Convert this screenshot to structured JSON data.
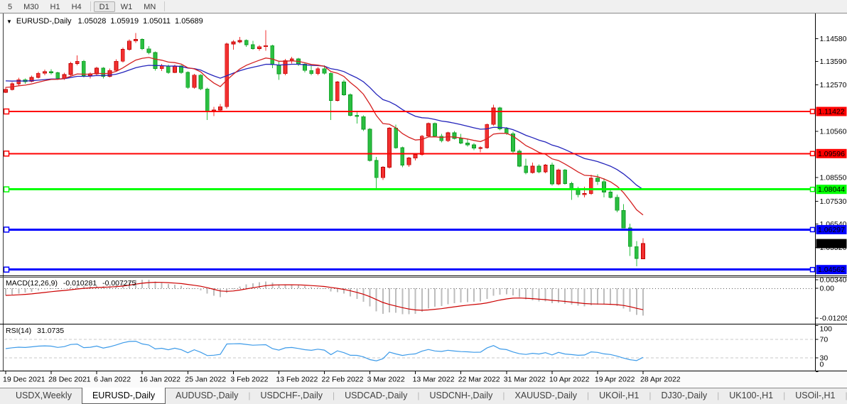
{
  "toolbar": {
    "timeframes": [
      "5",
      "M30",
      "H1",
      "H4",
      "D1",
      "W1",
      "MN"
    ],
    "active": "D1",
    "separators_after": [
      3,
      6
    ]
  },
  "chart_header": {
    "collapse_icon": "▼",
    "symbol_title": "EURUSD-,Daily",
    "open": "1.05028",
    "high": "1.05919",
    "low": "1.05011",
    "close": "1.05689"
  },
  "price_axis": {
    "ticks": [
      {
        "label": "1.14580",
        "price": 1.1458
      },
      {
        "label": "1.13590",
        "price": 1.1359
      },
      {
        "label": "1.12570",
        "price": 1.1257
      },
      {
        "label": "1.10560",
        "price": 1.1056
      },
      {
        "label": "1.08550",
        "price": 1.0855
      },
      {
        "label": "1.07530",
        "price": 1.0753
      },
      {
        "label": "1.06540",
        "price": 1.0654
      },
      {
        "label": "1.05520",
        "price": 1.0552
      }
    ],
    "tags": [
      {
        "label": "1.11422",
        "price": 1.11422,
        "bg": "#ff0000",
        "fg": "#ffffff",
        "current": false
      },
      {
        "label": "1.09596",
        "price": 1.09596,
        "bg": "#ff0000",
        "fg": "#ffffff",
        "current": false
      },
      {
        "label": "1.08044",
        "price": 1.08044,
        "bg": "#00ff00",
        "fg": "#000000",
        "current": false
      },
      {
        "label": "1.06297",
        "price": 1.06297,
        "bg": "#0000ff",
        "fg": "#ffffff",
        "current": false
      },
      {
        "label": "1.05689",
        "price": 1.05689,
        "bg": "#000000",
        "fg": "#ffffff",
        "current": true
      },
      {
        "label": "1.04562",
        "price": 1.04562,
        "bg": "#0000ff",
        "fg": "#ffffff",
        "current": false
      }
    ]
  },
  "indicators": {
    "macd": {
      "label": "MACD(12,26,9)",
      "value_main": "-0.010281",
      "value_signal": "-0.007275",
      "axis_labels": [
        {
          "label": "0.003408",
          "value": 0.003408
        },
        {
          "label": "0.00",
          "value": 0
        },
        {
          "label": "-0.012058",
          "value": -0.012058
        }
      ]
    },
    "rsi": {
      "label": "RSI(14)",
      "value": "31.0735",
      "axis_labels": [
        {
          "label": "100",
          "value": 100
        },
        {
          "label": "70",
          "value": 70
        },
        {
          "label": "30",
          "value": 30
        },
        {
          "label": "0",
          "value": 0
        }
      ],
      "levels": [
        70,
        30
      ]
    }
  },
  "x_axis": {
    "labels": [
      "19 Dec 2021",
      "28 Dec 2021",
      "6 Jan 2022",
      "16 Jan 2022",
      "25 Jan 2022",
      "3 Feb 2022",
      "13 Feb 2022",
      "22 Feb 2022",
      "3 Mar 2022",
      "13 Mar 2022",
      "22 Mar 2022",
      "31 Mar 2022",
      "10 Apr 2022",
      "19 Apr 2022",
      "28 Apr 2022"
    ],
    "bars_per_tick": 7
  },
  "tabs": {
    "items": [
      "USDX,Weekly",
      "EURUSD-,Daily",
      "AUDUSD-,Daily",
      "USDCHF-,Daily",
      "USDCAD-,Daily",
      "USDCNH-,Daily",
      "XAUUSD-,Daily",
      "UKOil-,H1",
      "DJ30-,Daily",
      "UK100-,H1",
      "USOil-,H1",
      "HK50-,H1"
    ],
    "active_index": 1,
    "scroll_left_icon": "◄",
    "scroll_right_icon": "►"
  },
  "chart_data": {
    "type": "candlestick",
    "symbol": "EURUSD-",
    "timeframe": "Daily",
    "title": "EURUSD-,Daily",
    "current_ohlc": {
      "open": 1.05028,
      "high": 1.05919,
      "low": 1.05011,
      "close": 1.05689
    },
    "price_range_shown": [
      1.0438,
      1.1565
    ],
    "colors": {
      "bull": "#f23030",
      "bull_border": "#c00000",
      "bear": "#2bbf41",
      "bear_border": "#0c9a22",
      "ma_fast": "#d42020",
      "ma_slow": "#2424bb",
      "macd_hist": "#bdbdbd",
      "macd_signal": "#cc0000",
      "rsi_line": "#3d9be9",
      "level_dash": "#c8c8c8"
    },
    "moving_averages": [
      {
        "period": 12,
        "color_key": "ma_fast"
      },
      {
        "period": 26,
        "color_key": "ma_slow"
      }
    ],
    "macd_params": [
      12,
      26,
      9
    ],
    "rsi_period": 14,
    "hlines": [
      {
        "price": 1.11422,
        "color": "#ff0000",
        "width": 2
      },
      {
        "price": 1.09596,
        "color": "#ff0000",
        "width": 2
      },
      {
        "price": 1.08044,
        "color": "#00ff00",
        "width": 3
      },
      {
        "price": 1.06297,
        "color": "#0000ff",
        "width": 3
      },
      {
        "price": 1.04562,
        "color": "#0000ff",
        "width": 3
      }
    ],
    "candles": [
      [
        1.1225,
        1.1248,
        1.1222,
        1.1238
      ],
      [
        1.1238,
        1.127,
        1.1233,
        1.1262
      ],
      [
        1.1262,
        1.1288,
        1.1255,
        1.128
      ],
      [
        1.128,
        1.1285,
        1.1262,
        1.1272
      ],
      [
        1.1272,
        1.1297,
        1.1268,
        1.129
      ],
      [
        1.129,
        1.1315,
        1.1285,
        1.1308
      ],
      [
        1.1308,
        1.1324,
        1.13,
        1.1315
      ],
      [
        1.1315,
        1.1325,
        1.1303,
        1.131
      ],
      [
        1.131,
        1.1315,
        1.128,
        1.1286
      ],
      [
        1.1286,
        1.131,
        1.128,
        1.1302
      ],
      [
        1.1302,
        1.1358,
        1.1298,
        1.135
      ],
      [
        1.135,
        1.1386,
        1.1342,
        1.136
      ],
      [
        1.136,
        1.1365,
        1.129,
        1.1298
      ],
      [
        1.1298,
        1.1312,
        1.1285,
        1.1305
      ],
      [
        1.1305,
        1.1336,
        1.13,
        1.133
      ],
      [
        1.133,
        1.1335,
        1.1285,
        1.1295
      ],
      [
        1.1295,
        1.1328,
        1.129,
        1.132
      ],
      [
        1.132,
        1.1368,
        1.1315,
        1.136
      ],
      [
        1.136,
        1.142,
        1.1355,
        1.1412
      ],
      [
        1.1412,
        1.1455,
        1.1405,
        1.1448
      ],
      [
        1.1448,
        1.1482,
        1.144,
        1.1455
      ],
      [
        1.1455,
        1.146,
        1.1408,
        1.1414
      ],
      [
        1.1414,
        1.1425,
        1.139,
        1.1398
      ],
      [
        1.1398,
        1.1402,
        1.132,
        1.1328
      ],
      [
        1.1328,
        1.1348,
        1.1318,
        1.134
      ],
      [
        1.134,
        1.1345,
        1.1305,
        1.1312
      ],
      [
        1.1312,
        1.1346,
        1.1308,
        1.134
      ],
      [
        1.134,
        1.1344,
        1.1305,
        1.1312
      ],
      [
        1.1312,
        1.1316,
        1.124,
        1.1246
      ],
      [
        1.1246,
        1.1305,
        1.124,
        1.13
      ],
      [
        1.13,
        1.1304,
        1.1235,
        1.124
      ],
      [
        1.124,
        1.1245,
        1.1105,
        1.1142
      ],
      [
        1.1142,
        1.1162,
        1.1122,
        1.1148
      ],
      [
        1.1148,
        1.1175,
        1.114,
        1.1163
      ],
      [
        1.1163,
        1.1441,
        1.1155,
        1.1435
      ],
      [
        1.1435,
        1.1452,
        1.141,
        1.1444
      ],
      [
        1.1444,
        1.1465,
        1.1438,
        1.145
      ],
      [
        1.145,
        1.1455,
        1.1422,
        1.1432
      ],
      [
        1.1432,
        1.1448,
        1.141,
        1.1415
      ],
      [
        1.1415,
        1.143,
        1.1405,
        1.1423
      ],
      [
        1.1423,
        1.1495,
        1.1405,
        1.1428
      ],
      [
        1.1428,
        1.1432,
        1.133,
        1.1345
      ],
      [
        1.1345,
        1.136,
        1.128,
        1.1306
      ],
      [
        1.1306,
        1.137,
        1.13,
        1.1362
      ],
      [
        1.1362,
        1.138,
        1.135,
        1.137
      ],
      [
        1.137,
        1.1375,
        1.134,
        1.1348
      ],
      [
        1.1348,
        1.1352,
        1.1312,
        1.132
      ],
      [
        1.132,
        1.134,
        1.13,
        1.1306
      ],
      [
        1.1306,
        1.1335,
        1.13,
        1.1328
      ],
      [
        1.1328,
        1.1342,
        1.1302,
        1.1308
      ],
      [
        1.1308,
        1.1312,
        1.1106,
        1.119
      ],
      [
        1.119,
        1.1275,
        1.1185,
        1.127
      ],
      [
        1.127,
        1.128,
        1.121,
        1.1215
      ],
      [
        1.1215,
        1.122,
        1.112,
        1.1125
      ],
      [
        1.1125,
        1.114,
        1.109,
        1.112
      ],
      [
        1.112,
        1.1125,
        1.1058,
        1.1065
      ],
      [
        1.1065,
        1.107,
        1.0925,
        1.093
      ],
      [
        1.093,
        1.0945,
        1.0806,
        1.0855
      ],
      [
        1.0855,
        1.0905,
        1.0845,
        1.09
      ],
      [
        1.09,
        1.1075,
        1.0895,
        1.107
      ],
      [
        1.107,
        1.1085,
        1.098,
        1.0985
      ],
      [
        1.0985,
        1.099,
        1.09,
        1.091
      ],
      [
        1.091,
        1.0945,
        1.0902,
        1.094
      ],
      [
        1.094,
        1.096,
        1.093,
        1.0955
      ],
      [
        1.0955,
        1.104,
        1.095,
        1.1035
      ],
      [
        1.1035,
        1.1095,
        1.103,
        1.109
      ],
      [
        1.109,
        1.1095,
        1.103,
        1.1035
      ],
      [
        1.1035,
        1.1045,
        1.1008,
        1.1015
      ],
      [
        1.1015,
        1.1055,
        1.101,
        1.105
      ],
      [
        1.105,
        1.1058,
        1.102,
        1.1025
      ],
      [
        1.1025,
        1.1045,
        1.1,
        1.1005
      ],
      [
        1.1005,
        1.1025,
        1.099,
        1.0997
      ],
      [
        1.0997,
        1.1005,
        1.0975,
        1.0983
      ],
      [
        1.0983,
        1.0992,
        1.0965,
        1.0985
      ],
      [
        1.0985,
        1.109,
        1.098,
        1.1086
      ],
      [
        1.1086,
        1.1171,
        1.108,
        1.1158
      ],
      [
        1.1158,
        1.1162,
        1.106,
        1.1067
      ],
      [
        1.1067,
        1.1075,
        1.104,
        1.1046
      ],
      [
        1.1046,
        1.1055,
        1.096,
        1.097
      ],
      [
        1.097,
        1.0978,
        1.09,
        1.0905
      ],
      [
        1.0905,
        1.0938,
        1.087,
        1.0877
      ],
      [
        1.0877,
        1.092,
        1.0872,
        1.0905
      ],
      [
        1.0905,
        1.0912,
        1.0875,
        1.088
      ],
      [
        1.088,
        1.0915,
        1.0875,
        1.091
      ],
      [
        1.091,
        1.092,
        1.082,
        1.0828
      ],
      [
        1.0828,
        1.0895,
        1.0822,
        1.0889
      ],
      [
        1.0889,
        1.0892,
        1.0825,
        1.083
      ],
      [
        1.083,
        1.0838,
        1.0758,
        1.0808
      ],
      [
        1.0808,
        1.0815,
        1.077,
        1.0781
      ],
      [
        1.0781,
        1.0815,
        1.077,
        1.0786
      ],
      [
        1.0786,
        1.0868,
        1.078,
        1.0853
      ],
      [
        1.0853,
        1.087,
        1.0823,
        1.0838
      ],
      [
        1.0838,
        1.0852,
        1.077,
        1.0793
      ],
      [
        1.0793,
        1.0805,
        1.0765,
        1.077
      ],
      [
        1.077,
        1.0782,
        1.0705,
        1.0713
      ],
      [
        1.0713,
        1.074,
        1.0635,
        1.0637
      ],
      [
        1.0637,
        1.0655,
        1.0515,
        1.0556
      ],
      [
        1.0556,
        1.058,
        1.047,
        1.0505
      ],
      [
        1.05028,
        1.05919,
        1.05011,
        1.05689
      ]
    ]
  }
}
